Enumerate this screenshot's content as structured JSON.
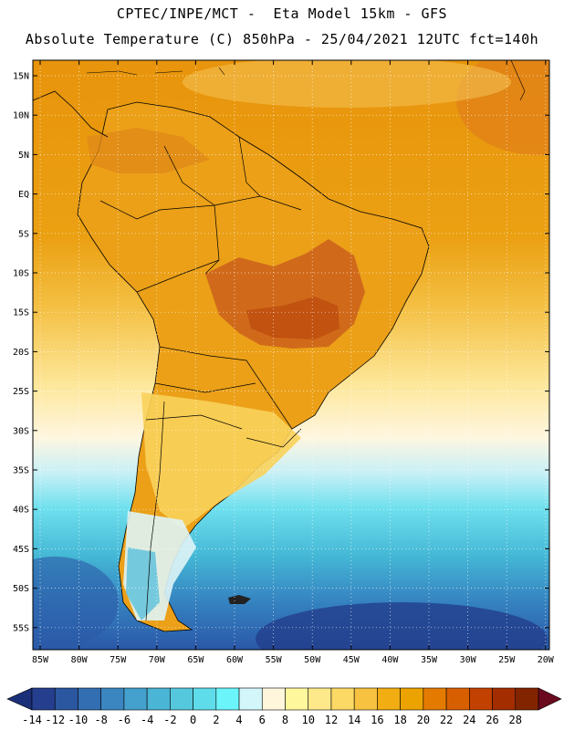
{
  "header": {
    "line1": "CPTEC/INPE/MCT -  Eta Model 15km - GFS",
    "line2": "Absolute Temperature (C) 850hPa - 25/04/2021 12UTC fct=140h"
  },
  "latitude_labels": [
    "15N",
    "10N",
    "5N",
    "EQ",
    "5S",
    "10S",
    "15S",
    "20S",
    "25S",
    "30S",
    "35S",
    "40S",
    "45S",
    "50S",
    "55S"
  ],
  "longitude_labels": [
    "85W",
    "80W",
    "75W",
    "70W",
    "65W",
    "60W",
    "55W",
    "50W",
    "45W",
    "40W",
    "35W",
    "30W",
    "25W",
    "20W"
  ],
  "colorbar": {
    "labels": [
      "-14",
      "-12",
      "-10",
      "-8",
      "-6",
      "-4",
      "-2",
      "0",
      "2",
      "4",
      "6",
      "8",
      "10",
      "12",
      "14",
      "16",
      "18",
      "20",
      "22",
      "24",
      "26",
      "28"
    ],
    "colors": [
      "#253f8e",
      "#2b56a0",
      "#336db2",
      "#3b86c0",
      "#44a0cc",
      "#4bb5d5",
      "#55c8de",
      "#5fdce9",
      "#6bf5fb",
      "#d2f6fa",
      "#fff6dc",
      "#fff79c",
      "#fde98a",
      "#fbd964",
      "#f7c240",
      "#f1ad12",
      "#eca300",
      "#e47b00",
      "#d85f00",
      "#c24100",
      "#a42d00",
      "#832400"
    ],
    "left_triangle_color": "#1a2f78",
    "right_triangle_color": "#6a0a1e"
  },
  "palette": {
    "hot": "#c45a10",
    "warm": "#e89a12",
    "mild": "#fbd060",
    "cool": "#fff8e0",
    "cold": "#5dd8e8",
    "colder": "#3aa8d0",
    "coldest": "#2a58a8"
  }
}
